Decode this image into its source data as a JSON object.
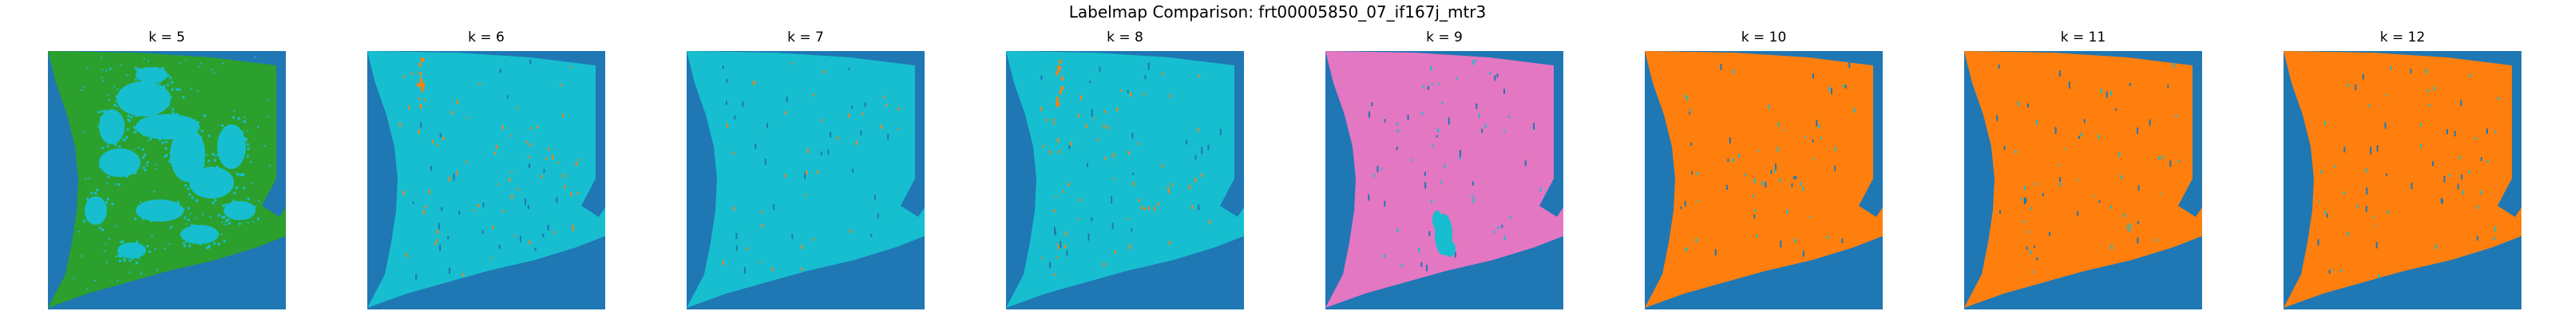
{
  "figure": {
    "title": "Labelmap Comparison: frt00005850_07_if167j_mtr3"
  },
  "palette": {
    "background_blue": "#1f77b4",
    "orange": "#ff7f0e",
    "green": "#2ca02c",
    "pink": "#e377c2",
    "cyan": "#17becf",
    "dot_blue": "#1f77b4"
  },
  "panels": [
    {
      "title": "k = 5",
      "main_color": "#2ca02c",
      "speckle_color": "#17becf",
      "speckle": "heavy"
    },
    {
      "title": "k = 6",
      "main_color": "#17becf",
      "speckle_color": "#ff7f0e",
      "speckle": "light"
    },
    {
      "title": "k = 7",
      "main_color": "#17becf",
      "speckle_color": "#ff7f0e",
      "speckle": "sparse"
    },
    {
      "title": "k = 8",
      "main_color": "#17becf",
      "speckle_color": "#ff7f0e",
      "speckle": "light"
    },
    {
      "title": "k = 9",
      "main_color": "#e377c2",
      "speckle_color": "#17becf",
      "speckle": "blob"
    },
    {
      "title": "k = 10",
      "main_color": "#ff7f0e",
      "speckle_color": "#17becf",
      "speckle": "sparse"
    },
    {
      "title": "k = 11",
      "main_color": "#ff7f0e",
      "speckle_color": "#17becf",
      "speckle": "sparse"
    },
    {
      "title": "k = 12",
      "main_color": "#ff7f0e",
      "speckle_color": "#17becf",
      "speckle": "sparse"
    }
  ]
}
